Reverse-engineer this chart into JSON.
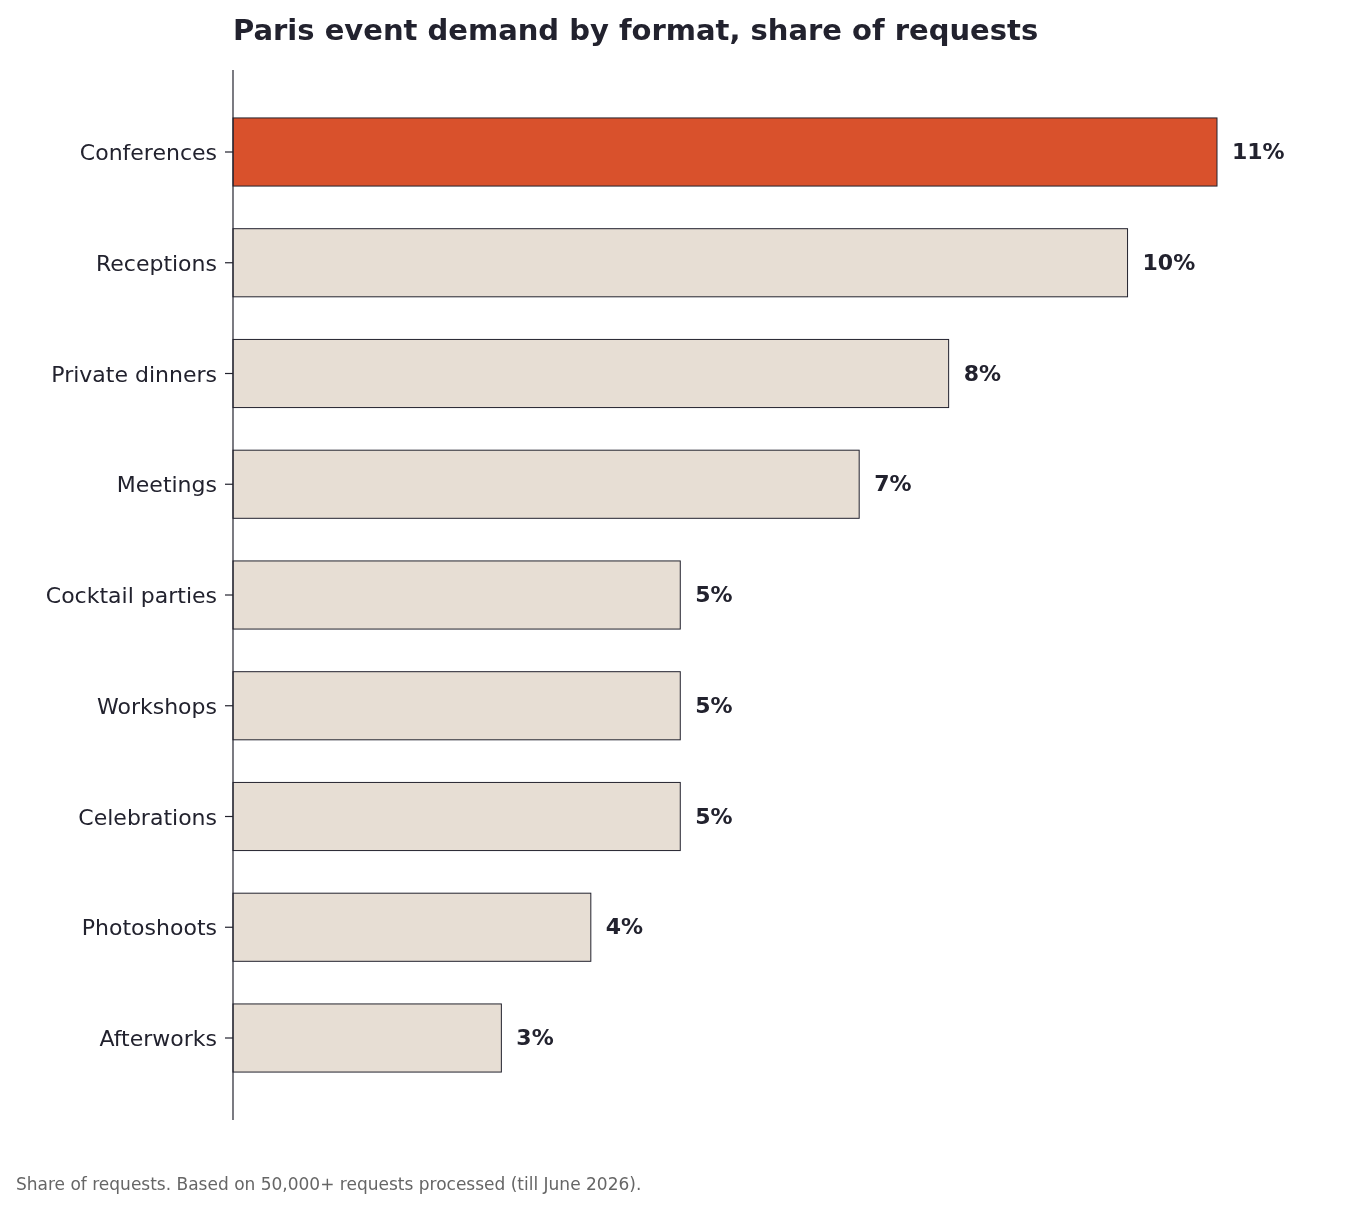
{
  "chart_data": {
    "type": "bar",
    "orientation": "horizontal",
    "title": "Paris event demand by format, share of requests",
    "categories": [
      "Conferences",
      "Receptions",
      "Private dinners",
      "Meetings",
      "Cocktail parties",
      "Workshops",
      "Celebrations",
      "Photoshoots",
      "Afterworks"
    ],
    "values": [
      11,
      10,
      8,
      7,
      5,
      5,
      5,
      4,
      3
    ],
    "colors": [
      "#d9512c",
      "#e7ded4",
      "#e7ded4",
      "#e7ded4",
      "#e7ded4",
      "#e7ded4",
      "#e7ded4",
      "#e7ded4",
      "#e7ded4"
    ],
    "value_labels": [
      "11%",
      "10%",
      "8%",
      "7%",
      "5%",
      "5%",
      "5%",
      "4%",
      "3%"
    ],
    "annotations": [
      "Share of requests. Based on 50,000+ requests processed (till June 2026)."
    ]
  }
}
